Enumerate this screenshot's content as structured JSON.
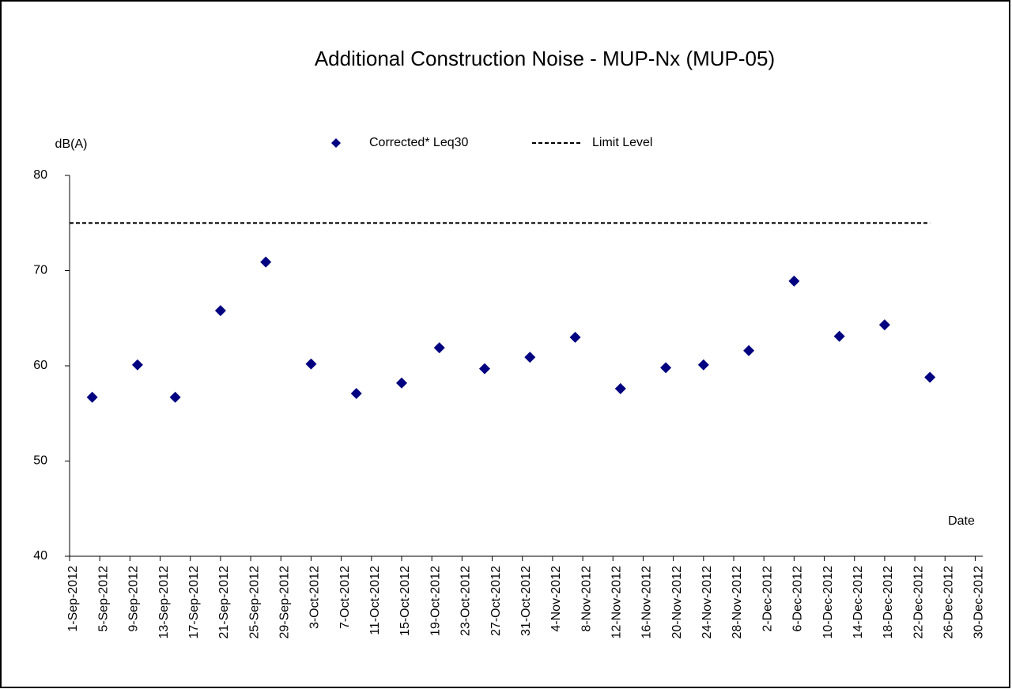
{
  "chart_data": {
    "type": "scatter",
    "title": "Additional Construction Noise - MUP-Nx  (MUP-05)",
    "ylabel": "dB(A)",
    "xlabel": "Date",
    "xlim": [
      "2012-09-01",
      "2012-12-31"
    ],
    "xticks": [
      {
        "value": "2012-09-01",
        "label": "1-Sep-2012"
      },
      {
        "value": "2012-09-05",
        "label": "5-Sep-2012"
      },
      {
        "value": "2012-09-09",
        "label": "9-Sep-2012"
      },
      {
        "value": "2012-09-13",
        "label": "13-Sep-2012"
      },
      {
        "value": "2012-09-17",
        "label": "17-Sep-2012"
      },
      {
        "value": "2012-09-21",
        "label": "21-Sep-2012"
      },
      {
        "value": "2012-09-25",
        "label": "25-Sep-2012"
      },
      {
        "value": "2012-09-29",
        "label": "29-Sep-2012"
      },
      {
        "value": "2012-10-03",
        "label": "3-Oct-2012"
      },
      {
        "value": "2012-10-07",
        "label": "7-Oct-2012"
      },
      {
        "value": "2012-10-11",
        "label": "11-Oct-2012"
      },
      {
        "value": "2012-10-15",
        "label": "15-Oct-2012"
      },
      {
        "value": "2012-10-19",
        "label": "19-Oct-2012"
      },
      {
        "value": "2012-10-23",
        "label": "23-Oct-2012"
      },
      {
        "value": "2012-10-27",
        "label": "27-Oct-2012"
      },
      {
        "value": "2012-10-31",
        "label": "31-Oct-2012"
      },
      {
        "value": "2012-11-04",
        "label": "4-Nov-2012"
      },
      {
        "value": "2012-11-08",
        "label": "8-Nov-2012"
      },
      {
        "value": "2012-11-12",
        "label": "12-Nov-2012"
      },
      {
        "value": "2012-11-16",
        "label": "16-Nov-2012"
      },
      {
        "value": "2012-11-20",
        "label": "20-Nov-2012"
      },
      {
        "value": "2012-11-24",
        "label": "24-Nov-2012"
      },
      {
        "value": "2012-11-28",
        "label": "28-Nov-2012"
      },
      {
        "value": "2012-12-02",
        "label": "2-Dec-2012"
      },
      {
        "value": "2012-12-06",
        "label": "6-Dec-2012"
      },
      {
        "value": "2012-12-10",
        "label": "10-Dec-2012"
      },
      {
        "value": "2012-12-14",
        "label": "14-Dec-2012"
      },
      {
        "value": "2012-12-18",
        "label": "18-Dec-2012"
      },
      {
        "value": "2012-12-22",
        "label": "22-Dec-2012"
      },
      {
        "value": "2012-12-26",
        "label": "26-Dec-2012"
      },
      {
        "value": "2012-12-30",
        "label": "30-Dec-2012"
      }
    ],
    "ylim": [
      40,
      80
    ],
    "yticks": [
      40,
      50,
      60,
      70,
      80
    ],
    "grid": false,
    "series": [
      {
        "name": "Corrected* Leq30",
        "color": "#000080",
        "marker": "diamond",
        "x": [
          "2012-09-04",
          "2012-09-10",
          "2012-09-15",
          "2012-09-21",
          "2012-09-27",
          "2012-10-03",
          "2012-10-09",
          "2012-10-15",
          "2012-10-20",
          "2012-10-26",
          "2012-11-01",
          "2012-11-07",
          "2012-11-13",
          "2012-11-19",
          "2012-11-24",
          "2012-11-30",
          "2012-12-06",
          "2012-12-12",
          "2012-12-18",
          "2012-12-24"
        ],
        "values": [
          56.7,
          60.1,
          56.7,
          65.8,
          70.9,
          60.2,
          57.1,
          58.2,
          61.9,
          59.7,
          60.9,
          63.0,
          57.6,
          59.8,
          60.1,
          61.6,
          68.9,
          63.1,
          64.3,
          58.8
        ]
      },
      {
        "name": "Limit Level",
        "color": "#000000",
        "line": "dashed",
        "x": [
          "2012-09-01",
          "2012-12-24"
        ],
        "values": [
          75,
          75
        ]
      }
    ]
  }
}
